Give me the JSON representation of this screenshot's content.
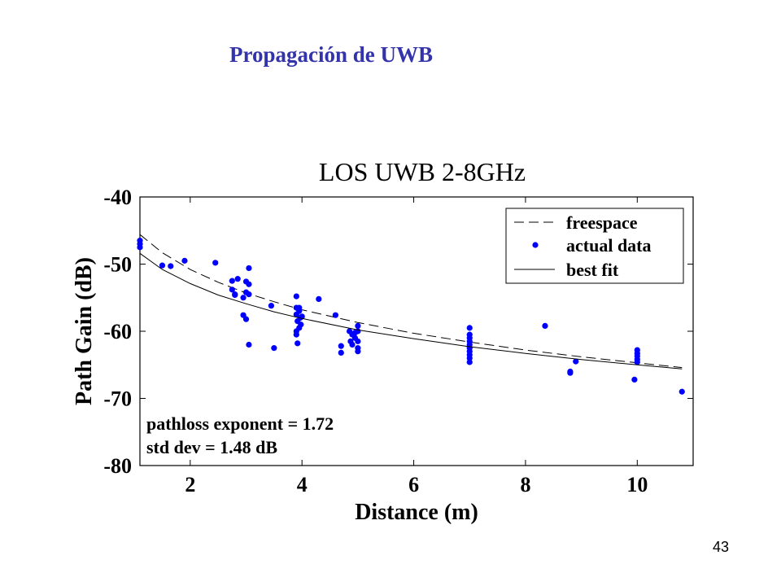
{
  "slide": {
    "title": "Propagación de UWB",
    "page_number": "43"
  },
  "chart_data": {
    "type": "scatter",
    "title": "LOS UWB 2-8GHz",
    "xlabel": "Distance (m)",
    "ylabel": "Path Gain (dB)",
    "xlim": [
      1.1,
      11.0
    ],
    "ylim": [
      -80,
      -40
    ],
    "x_ticks": [
      2,
      4,
      6,
      8,
      10
    ],
    "y_ticks": [
      -40,
      -50,
      -60,
      -70,
      -80
    ],
    "grid": false,
    "legend_position": "top-right",
    "legend": [
      "freespace",
      "actual data",
      "best fit"
    ],
    "annotations": [
      "pathloss exponent = 1.72",
      "std dev = 1.48 dB"
    ],
    "colors": {
      "points": "#0000ff",
      "lines": "#000000"
    },
    "series": [
      {
        "name": "freespace",
        "style": "dashed-line",
        "x": [
          1.1,
          1.5,
          2,
          2.5,
          3,
          3.5,
          4,
          5,
          6,
          7,
          8,
          9,
          10,
          10.8
        ],
        "y": [
          -45.6,
          -48.3,
          -50.8,
          -52.7,
          -54.3,
          -55.6,
          -56.8,
          -58.7,
          -60.3,
          -61.6,
          -62.8,
          -63.8,
          -64.7,
          -65.4
        ]
      },
      {
        "name": "actual data",
        "style": "points",
        "x": [
          1.1,
          1.1,
          1.1,
          1.5,
          1.65,
          1.9,
          2.45,
          2.75,
          2.8,
          2.85,
          2.75,
          2.8,
          2.95,
          3.0,
          3.05,
          3.0,
          3.05,
          2.95,
          3.0,
          3.05,
          3.05,
          3.45,
          3.5,
          3.9,
          3.9,
          3.9,
          3.92,
          3.95,
          3.95,
          3.97,
          3.98,
          4.0,
          3.9,
          3.9,
          3.92,
          3.95,
          4.3,
          4.6,
          4.7,
          4.7,
          4.85,
          4.87,
          4.9,
          4.9,
          4.95,
          5.0,
          5.0,
          5.0,
          5.0,
          5.0,
          4.95,
          7.0,
          7.0,
          7.0,
          7.0,
          7.0,
          7.0,
          7.0,
          7.0,
          7.0,
          7.0,
          8.35,
          8.8,
          8.8,
          8.9,
          9.95,
          10.0,
          10.0,
          10.0,
          10.0,
          10.0,
          10.8
        ],
        "y": [
          -46.5,
          -47.0,
          -47.5,
          -50.2,
          -50.3,
          -49.5,
          -49.8,
          -53.8,
          -54.6,
          -52.2,
          -52.5,
          -54.5,
          -55.0,
          -54.2,
          -54.5,
          -52.6,
          -53.0,
          -57.6,
          -58.2,
          -62.0,
          -50.6,
          -56.2,
          -62.5,
          -54.8,
          -56.5,
          -57.5,
          -58.5,
          -57.0,
          -56.5,
          -58.0,
          -59.0,
          -57.8,
          -60.0,
          -60.5,
          -61.8,
          -59.5,
          -55.2,
          -57.6,
          -62.2,
          -63.2,
          -60.0,
          -61.5,
          -62.0,
          -60.5,
          -61.0,
          -59.2,
          -60.0,
          -61.5,
          -62.5,
          -63.0,
          -60.2,
          -59.5,
          -60.5,
          -61.0,
          -61.5,
          -62.0,
          -62.5,
          -63.0,
          -63.5,
          -64.0,
          -64.6,
          -59.2,
          -66.0,
          -66.2,
          -64.5,
          -67.2,
          -62.8,
          -63.3,
          -63.7,
          -64.2,
          -64.6,
          -69.0
        ]
      },
      {
        "name": "best fit",
        "style": "solid-line",
        "x": [
          1.1,
          1.5,
          2,
          2.5,
          3,
          3.5,
          4,
          5,
          6,
          7,
          8,
          9,
          10,
          10.8
        ],
        "y": [
          -48.4,
          -50.8,
          -52.9,
          -54.6,
          -55.9,
          -57.1,
          -58.1,
          -59.8,
          -61.1,
          -62.3,
          -63.3,
          -64.2,
          -65.0,
          -65.6
        ]
      }
    ]
  }
}
